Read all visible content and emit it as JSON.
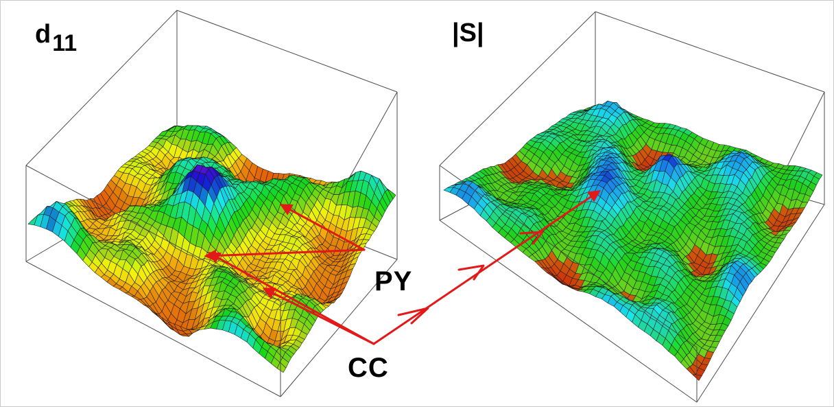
{
  "panels": {
    "left": {
      "title_main": "d",
      "title_sub": "11"
    },
    "right": {
      "title": "|S|"
    }
  },
  "labels": {
    "py": "PY",
    "cc": "CC"
  },
  "colors": {
    "arrow": "#e11919",
    "box_line": "#4b4b4b",
    "mesh_line": "#1a1a1a"
  }
}
